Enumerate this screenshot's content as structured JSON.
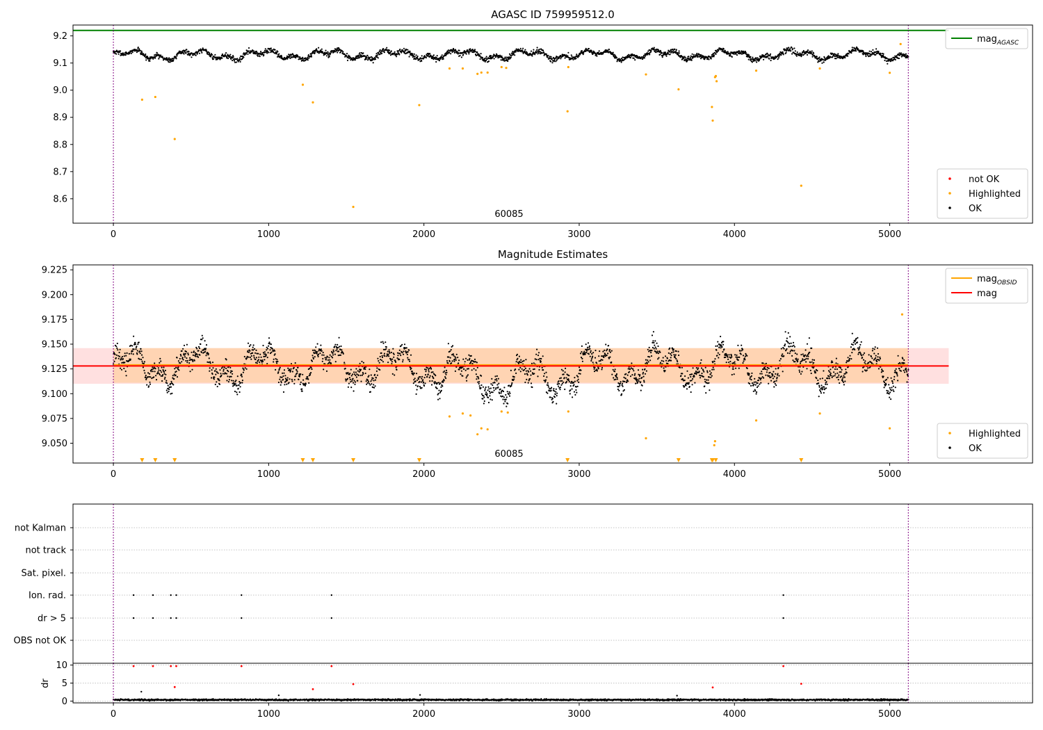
{
  "chart_data": [
    {
      "type": "scatter",
      "title": "AGASC ID 759959512.0",
      "xlim": [
        -260,
        5920
      ],
      "ylim": [
        8.51,
        9.24
      ],
      "xticks": [
        0,
        1000,
        2000,
        3000,
        4000,
        5000
      ],
      "yticks": [
        8.6,
        8.7,
        8.8,
        8.9,
        9.0,
        9.1,
        9.2
      ],
      "ytick_decimals": 1,
      "grid": false,
      "annotation": "60085",
      "vlines_x": [
        0,
        5120
      ],
      "hline": {
        "name": "mag",
        "subscript": "AGASC",
        "y": 9.22,
        "color": "#008000"
      },
      "ok_series": {
        "name": "OK",
        "color": "#000000",
        "x_range": [
          0,
          5120
        ],
        "mean": 9.13,
        "wave_amplitude": 0.018
      },
      "highlighted": {
        "name": "Highlighted",
        "color": "#ffa500",
        "points": [
          [
            185,
            8.965
          ],
          [
            270,
            8.975
          ],
          [
            395,
            8.82
          ],
          [
            1220,
            9.02
          ],
          [
            1285,
            8.955
          ],
          [
            1545,
            8.57
          ],
          [
            1970,
            8.945
          ],
          [
            2165,
            9.08
          ],
          [
            2250,
            9.08
          ],
          [
            2345,
            9.06
          ],
          [
            2370,
            9.065
          ],
          [
            2410,
            9.065
          ],
          [
            2500,
            9.085
          ],
          [
            2530,
            9.082
          ],
          [
            2925,
            8.922
          ],
          [
            2930,
            9.085
          ],
          [
            3430,
            9.058
          ],
          [
            3640,
            9.003
          ],
          [
            3855,
            8.938
          ],
          [
            3860,
            8.888
          ],
          [
            3875,
            9.048
          ],
          [
            3880,
            9.052
          ],
          [
            3885,
            9.033
          ],
          [
            4140,
            9.072
          ],
          [
            4430,
            8.648
          ],
          [
            4550,
            9.08
          ],
          [
            5000,
            9.064
          ],
          [
            5070,
            9.17
          ]
        ]
      },
      "legends": [
        {
          "position": "upper right",
          "entries": [
            {
              "label": "mag",
              "sub": "AGASC",
              "kind": "line",
              "color": "#008000"
            }
          ]
        },
        {
          "position": "lower right",
          "entries": [
            {
              "label": "not OK",
              "kind": "dot",
              "color": "#ff0000"
            },
            {
              "label": "Highlighted",
              "kind": "dot",
              "color": "#ffa500"
            },
            {
              "label": "OK",
              "kind": "dot",
              "color": "#000000"
            }
          ]
        }
      ]
    },
    {
      "type": "scatter",
      "title": "Magnitude Estimates",
      "xlim": [
        -260,
        5920
      ],
      "ylim": [
        9.03,
        9.23
      ],
      "xticks": [
        0,
        1000,
        2000,
        3000,
        4000,
        5000
      ],
      "yticks": [
        9.05,
        9.075,
        9.1,
        9.125,
        9.15,
        9.175,
        9.2,
        9.225
      ],
      "ytick_decimals": 3,
      "grid": false,
      "annotation": "60085",
      "vlines_x": [
        0,
        5120
      ],
      "mag_line": {
        "name": "mag",
        "y": 9.128,
        "color": "#ff0000",
        "band": [
          9.11,
          9.146
        ],
        "band_x": [
          -260,
          5380
        ]
      },
      "mag_obsid": {
        "name": "mag",
        "subscript": "OBSID",
        "y": 9.129,
        "color": "#ffa500",
        "band": [
          9.111,
          9.146
        ],
        "x_range": [
          0,
          5120
        ]
      },
      "ok_series": {
        "name": "OK",
        "color": "#000000",
        "x_range": [
          0,
          5120
        ],
        "mean": 9.128,
        "wave_amplitude": 0.02
      },
      "highlighted": {
        "name": "Highlighted",
        "color": "#ffa500",
        "points": [
          [
            2165,
            9.077
          ],
          [
            2250,
            9.08
          ],
          [
            2300,
            9.078
          ],
          [
            2345,
            9.059
          ],
          [
            2370,
            9.065
          ],
          [
            2410,
            9.064
          ],
          [
            2500,
            9.082
          ],
          [
            2540,
            9.081
          ],
          [
            2930,
            9.082
          ],
          [
            3430,
            9.055
          ],
          [
            3870,
            9.048
          ],
          [
            3875,
            9.052
          ],
          [
            4140,
            9.073
          ],
          [
            4550,
            9.08
          ],
          [
            5000,
            9.065
          ],
          [
            5080,
            9.18
          ]
        ]
      },
      "lower_markers_x": [
        185,
        270,
        395,
        1220,
        1285,
        1545,
        1970,
        2925,
        3640,
        3855,
        3860,
        3880,
        4430
      ],
      "legends": [
        {
          "position": "upper right",
          "entries": [
            {
              "label": "mag",
              "sub": "OBSID",
              "kind": "line",
              "color": "#ffa500"
            },
            {
              "label": "mag",
              "kind": "line",
              "color": "#ff0000"
            }
          ]
        },
        {
          "position": "lower right",
          "entries": [
            {
              "label": "Highlighted",
              "kind": "dot",
              "color": "#ffa500"
            },
            {
              "label": "OK",
              "kind": "dot",
              "color": "#000000"
            }
          ]
        }
      ]
    },
    {
      "type": "scatter",
      "title": "",
      "xlim": [
        -260,
        5920
      ],
      "categories": [
        "OBS not OK",
        "dr > 5",
        "Ion. rad.",
        "Sat. pixel.",
        "not track",
        "not Kalman"
      ],
      "grid": true,
      "vlines_x": [
        0,
        5120
      ],
      "flag_points": {
        "dr > 5": [
          130,
          255,
          370,
          405,
          825,
          1405,
          4315
        ],
        "Ion. rad.": [
          130,
          255,
          370,
          405,
          825,
          1405,
          4315
        ]
      }
    },
    {
      "type": "scatter",
      "title": "",
      "ylabel": "dr",
      "xlim": [
        -260,
        5920
      ],
      "ylim": [
        -0.5,
        10.5
      ],
      "xticks": [
        0,
        1000,
        2000,
        3000,
        4000,
        5000
      ],
      "yticks": [
        0,
        5,
        10
      ],
      "ytick_decimals": 0,
      "grid": true,
      "vlines_x": [
        0,
        5120
      ],
      "ok_series": {
        "name": "OK",
        "color": "#000000",
        "x_range": [
          0,
          5120
        ],
        "mean": 0.35,
        "noise": 0.3
      },
      "sparse_black": [
        [
          180,
          2.6
        ],
        [
          1065,
          1.6
        ],
        [
          1975,
          1.7
        ],
        [
          3630,
          1.5
        ]
      ],
      "red_points": [
        [
          130,
          9.7
        ],
        [
          255,
          9.7
        ],
        [
          370,
          9.7
        ],
        [
          405,
          9.7
        ],
        [
          825,
          9.7
        ],
        [
          1405,
          9.7
        ],
        [
          4315,
          9.7
        ],
        [
          395,
          3.9
        ],
        [
          1285,
          3.3
        ],
        [
          1545,
          4.7
        ],
        [
          3860,
          3.8
        ],
        [
          4430,
          4.8
        ]
      ]
    }
  ]
}
